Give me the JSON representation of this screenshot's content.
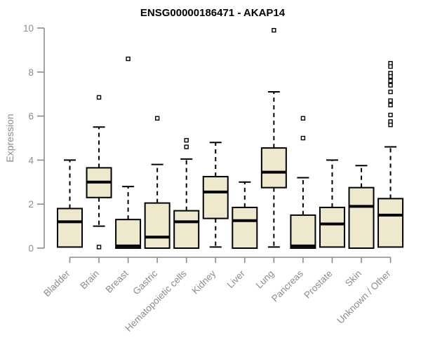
{
  "page": {
    "background": "#ffffff"
  },
  "chart_data": {
    "type": "boxplot",
    "title": "ENSG00000186471 - AKAP14",
    "ylabel": "Expression",
    "xlabel": "",
    "ylim": [
      0,
      10
    ],
    "yticks": [
      0,
      2,
      4,
      6,
      8,
      10
    ],
    "grid": false,
    "legend": false,
    "colors": {
      "box_fill": "#EEE8CD",
      "box_border": "#000000",
      "median": "#000000",
      "whisker": "#000000",
      "outlier_stroke": "#000000",
      "outlier_fill": "#ffffff",
      "axis": "#8C8C8C",
      "tick_label": "#8C8C8C",
      "title": "#000000"
    },
    "categories": [
      "Bladder",
      "Brain",
      "Breast",
      "Gastric",
      "Hematopoietic cells",
      "Kidney",
      "Liver",
      "Lung",
      "Pancreas",
      "Prostate",
      "Skin",
      "Unknown / Other"
    ],
    "series": [
      {
        "name": "Bladder",
        "min": 0.05,
        "q1": 0.05,
        "median": 1.2,
        "q3": 1.8,
        "max": 4.0,
        "outliers": []
      },
      {
        "name": "Brain",
        "min": 1.0,
        "q1": 2.3,
        "median": 3.0,
        "q3": 3.65,
        "max": 5.5,
        "outliers": [
          6.85,
          0.05
        ]
      },
      {
        "name": "Breast",
        "min": 0.0,
        "q1": 0.0,
        "median": 0.1,
        "q3": 1.3,
        "max": 2.8,
        "outliers": [
          8.6
        ]
      },
      {
        "name": "Gastric",
        "min": 0.0,
        "q1": 0.0,
        "median": 0.5,
        "q3": 2.05,
        "max": 3.8,
        "outliers": [
          5.9
        ]
      },
      {
        "name": "Hematopoietic cells",
        "min": 0.0,
        "q1": 0.0,
        "median": 1.2,
        "q3": 1.7,
        "max": 4.05,
        "outliers": [
          4.9,
          4.6
        ]
      },
      {
        "name": "Kidney",
        "min": 0.05,
        "q1": 1.35,
        "median": 2.55,
        "q3": 3.25,
        "max": 4.8,
        "outliers": []
      },
      {
        "name": "Liver",
        "min": 0.0,
        "q1": 0.0,
        "median": 1.25,
        "q3": 1.85,
        "max": 3.0,
        "outliers": []
      },
      {
        "name": "Lung",
        "min": 0.05,
        "q1": 2.75,
        "median": 3.45,
        "q3": 4.55,
        "max": 7.1,
        "outliers": [
          9.9
        ]
      },
      {
        "name": "Pancreas",
        "min": 0.0,
        "q1": 0.0,
        "median": 0.1,
        "q3": 1.5,
        "max": 3.2,
        "outliers": [
          5.9,
          5.0
        ]
      },
      {
        "name": "Prostate",
        "min": 0.05,
        "q1": 0.05,
        "median": 1.1,
        "q3": 1.85,
        "max": 4.0,
        "outliers": []
      },
      {
        "name": "Skin",
        "min": 0.0,
        "q1": 0.0,
        "median": 1.9,
        "q3": 2.75,
        "max": 3.75,
        "outliers": []
      },
      {
        "name": "Unknown / Other",
        "min": 0.05,
        "q1": 0.05,
        "median": 1.5,
        "q3": 2.25,
        "max": 4.6,
        "outliers": [
          8.4,
          8.25,
          7.95,
          7.8,
          7.6,
          7.4,
          7.1,
          6.7,
          6.5,
          6.05,
          5.75,
          5.6
        ]
      }
    ]
  }
}
